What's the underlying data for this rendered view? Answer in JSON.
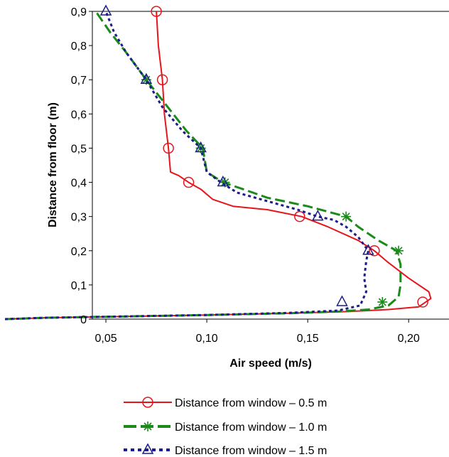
{
  "chart_data": {
    "type": "line",
    "xlabel": "Air speed (m/s)",
    "ylabel": "Distance from floor (m)",
    "xlim": [
      0.0,
      0.22
    ],
    "ylim": [
      0.0,
      0.9
    ],
    "xticks": [
      {
        "v": 0.05,
        "label": "0,05"
      },
      {
        "v": 0.1,
        "label": "0,10"
      },
      {
        "v": 0.15,
        "label": "0,15"
      },
      {
        "v": 0.2,
        "label": "0,20"
      }
    ],
    "yticks": [
      {
        "v": 0.0,
        "label": "0"
      },
      {
        "v": 0.1,
        "label": "0,1"
      },
      {
        "v": 0.2,
        "label": "0,2"
      },
      {
        "v": 0.3,
        "label": "0,3"
      },
      {
        "v": 0.4,
        "label": "0,4"
      },
      {
        "v": 0.5,
        "label": "0,5"
      },
      {
        "v": 0.6,
        "label": "0,6"
      },
      {
        "v": 0.7,
        "label": "0,7"
      },
      {
        "v": 0.8,
        "label": "0,8"
      },
      {
        "v": 0.9,
        "label": "0,9"
      }
    ],
    "legend_position": "bottom",
    "series": [
      {
        "name": "Distance from window – 0.5 m",
        "color": "#e8141c",
        "marker": "circle",
        "line": "solid",
        "curve": [
          [
            0.0,
            0.0
          ],
          [
            0.02,
            0.004
          ],
          [
            0.06,
            0.008
          ],
          [
            0.1,
            0.012
          ],
          [
            0.14,
            0.017
          ],
          [
            0.17,
            0.022
          ],
          [
            0.19,
            0.028
          ],
          [
            0.205,
            0.036
          ],
          [
            0.211,
            0.06
          ],
          [
            0.21,
            0.08
          ],
          [
            0.2,
            0.12
          ],
          [
            0.19,
            0.165
          ],
          [
            0.183,
            0.2
          ],
          [
            0.175,
            0.23
          ],
          [
            0.16,
            0.27
          ],
          [
            0.147,
            0.3
          ],
          [
            0.13,
            0.32
          ],
          [
            0.113,
            0.33
          ],
          [
            0.103,
            0.35
          ],
          [
            0.097,
            0.38
          ],
          [
            0.091,
            0.4
          ],
          [
            0.086,
            0.42
          ],
          [
            0.082,
            0.43
          ],
          [
            0.081,
            0.5
          ],
          [
            0.079,
            0.6
          ],
          [
            0.078,
            0.7
          ],
          [
            0.076,
            0.8
          ],
          [
            0.075,
            0.9
          ]
        ],
        "points": [
          [
            0.075,
            0.9
          ],
          [
            0.078,
            0.7
          ],
          [
            0.081,
            0.5
          ],
          [
            0.091,
            0.4
          ],
          [
            0.146,
            0.3
          ],
          [
            0.183,
            0.2
          ],
          [
            0.207,
            0.05
          ]
        ]
      },
      {
        "name": "Distance from window – 1.0 m",
        "color": "#1b8a1b",
        "marker": "star",
        "line": "dashed",
        "curve": [
          [
            0.0,
            0.0
          ],
          [
            0.02,
            0.004
          ],
          [
            0.06,
            0.008
          ],
          [
            0.1,
            0.012
          ],
          [
            0.14,
            0.017
          ],
          [
            0.165,
            0.022
          ],
          [
            0.18,
            0.028
          ],
          [
            0.19,
            0.04
          ],
          [
            0.195,
            0.065
          ],
          [
            0.196,
            0.1
          ],
          [
            0.196,
            0.16
          ],
          [
            0.194,
            0.2
          ],
          [
            0.185,
            0.23
          ],
          [
            0.175,
            0.27
          ],
          [
            0.169,
            0.3
          ],
          [
            0.15,
            0.33
          ],
          [
            0.13,
            0.355
          ],
          [
            0.118,
            0.38
          ],
          [
            0.108,
            0.4
          ],
          [
            0.1,
            0.43
          ],
          [
            0.098,
            0.5
          ],
          [
            0.09,
            0.55
          ],
          [
            0.078,
            0.64
          ],
          [
            0.07,
            0.7
          ],
          [
            0.06,
            0.78
          ],
          [
            0.052,
            0.84
          ],
          [
            0.045,
            0.9
          ]
        ],
        "points": [
          [
            0.07,
            0.7
          ],
          [
            0.097,
            0.5
          ],
          [
            0.109,
            0.4
          ],
          [
            0.169,
            0.3
          ],
          [
            0.195,
            0.2
          ],
          [
            0.187,
            0.05
          ]
        ]
      },
      {
        "name": "Distance from window – 1.5 m",
        "color": "#1c1c8a",
        "marker": "triangle",
        "line": "dotted",
        "curve": [
          [
            0.0,
            0.0
          ],
          [
            0.02,
            0.004
          ],
          [
            0.06,
            0.008
          ],
          [
            0.1,
            0.012
          ],
          [
            0.14,
            0.018
          ],
          [
            0.165,
            0.025
          ],
          [
            0.176,
            0.04
          ],
          [
            0.179,
            0.08
          ],
          [
            0.178,
            0.12
          ],
          [
            0.179,
            0.17
          ],
          [
            0.18,
            0.2
          ],
          [
            0.175,
            0.24
          ],
          [
            0.169,
            0.27
          ],
          [
            0.163,
            0.29
          ],
          [
            0.155,
            0.3
          ],
          [
            0.145,
            0.32
          ],
          [
            0.13,
            0.345
          ],
          [
            0.115,
            0.37
          ],
          [
            0.107,
            0.4
          ],
          [
            0.1,
            0.43
          ],
          [
            0.097,
            0.5
          ],
          [
            0.088,
            0.55
          ],
          [
            0.078,
            0.62
          ],
          [
            0.07,
            0.7
          ],
          [
            0.06,
            0.78
          ],
          [
            0.054,
            0.84
          ],
          [
            0.05,
            0.9
          ]
        ],
        "points": [
          [
            0.05,
            0.9
          ],
          [
            0.07,
            0.7
          ],
          [
            0.097,
            0.5
          ],
          [
            0.108,
            0.4
          ],
          [
            0.155,
            0.3
          ],
          [
            0.18,
            0.2
          ],
          [
            0.167,
            0.05
          ]
        ]
      }
    ]
  }
}
